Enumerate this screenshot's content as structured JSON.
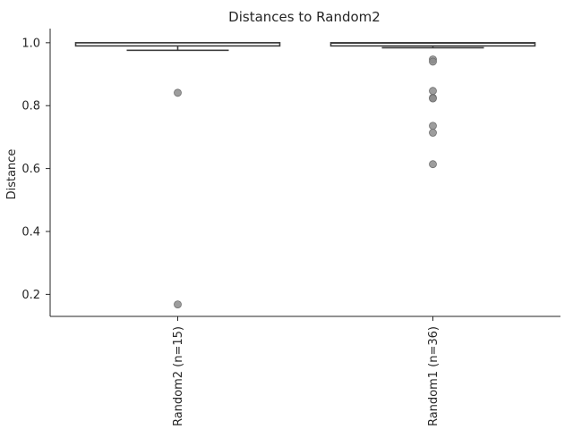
{
  "chart_data": {
    "type": "box",
    "title": "Distances to Random2",
    "xlabel": "",
    "ylabel": "Distance",
    "ylim": [
      0.13,
      1.045
    ],
    "yticks": [
      0.2,
      0.4,
      0.6,
      0.8,
      1.0
    ],
    "ytick_labels": [
      "0.2",
      "0.4",
      "0.6",
      "0.8",
      "1.0"
    ],
    "grid": false,
    "categories": [
      "Random2 (n=15)",
      "Random1 (n=36)"
    ],
    "boxes": [
      {
        "category": "Random2 (n=15)",
        "whisker_low": 0.976,
        "q1": 0.99,
        "median": 1.0,
        "q3": 1.0,
        "whisker_high": 1.0,
        "outliers": [
          0.841,
          0.168
        ]
      },
      {
        "category": "Random1 (n=36)",
        "whisker_low": 0.984,
        "q1": 0.99,
        "median": 0.999,
        "q3": 1.0,
        "whisker_high": 1.0,
        "outliers": [
          0.947,
          0.94,
          0.847,
          0.825,
          0.823,
          0.736,
          0.714,
          0.614
        ]
      }
    ],
    "colors": {
      "box_edge": "#3f3f3f",
      "box_fill": "#ffffff",
      "outlier": "#8c8c8c",
      "axis": "#262626"
    }
  }
}
